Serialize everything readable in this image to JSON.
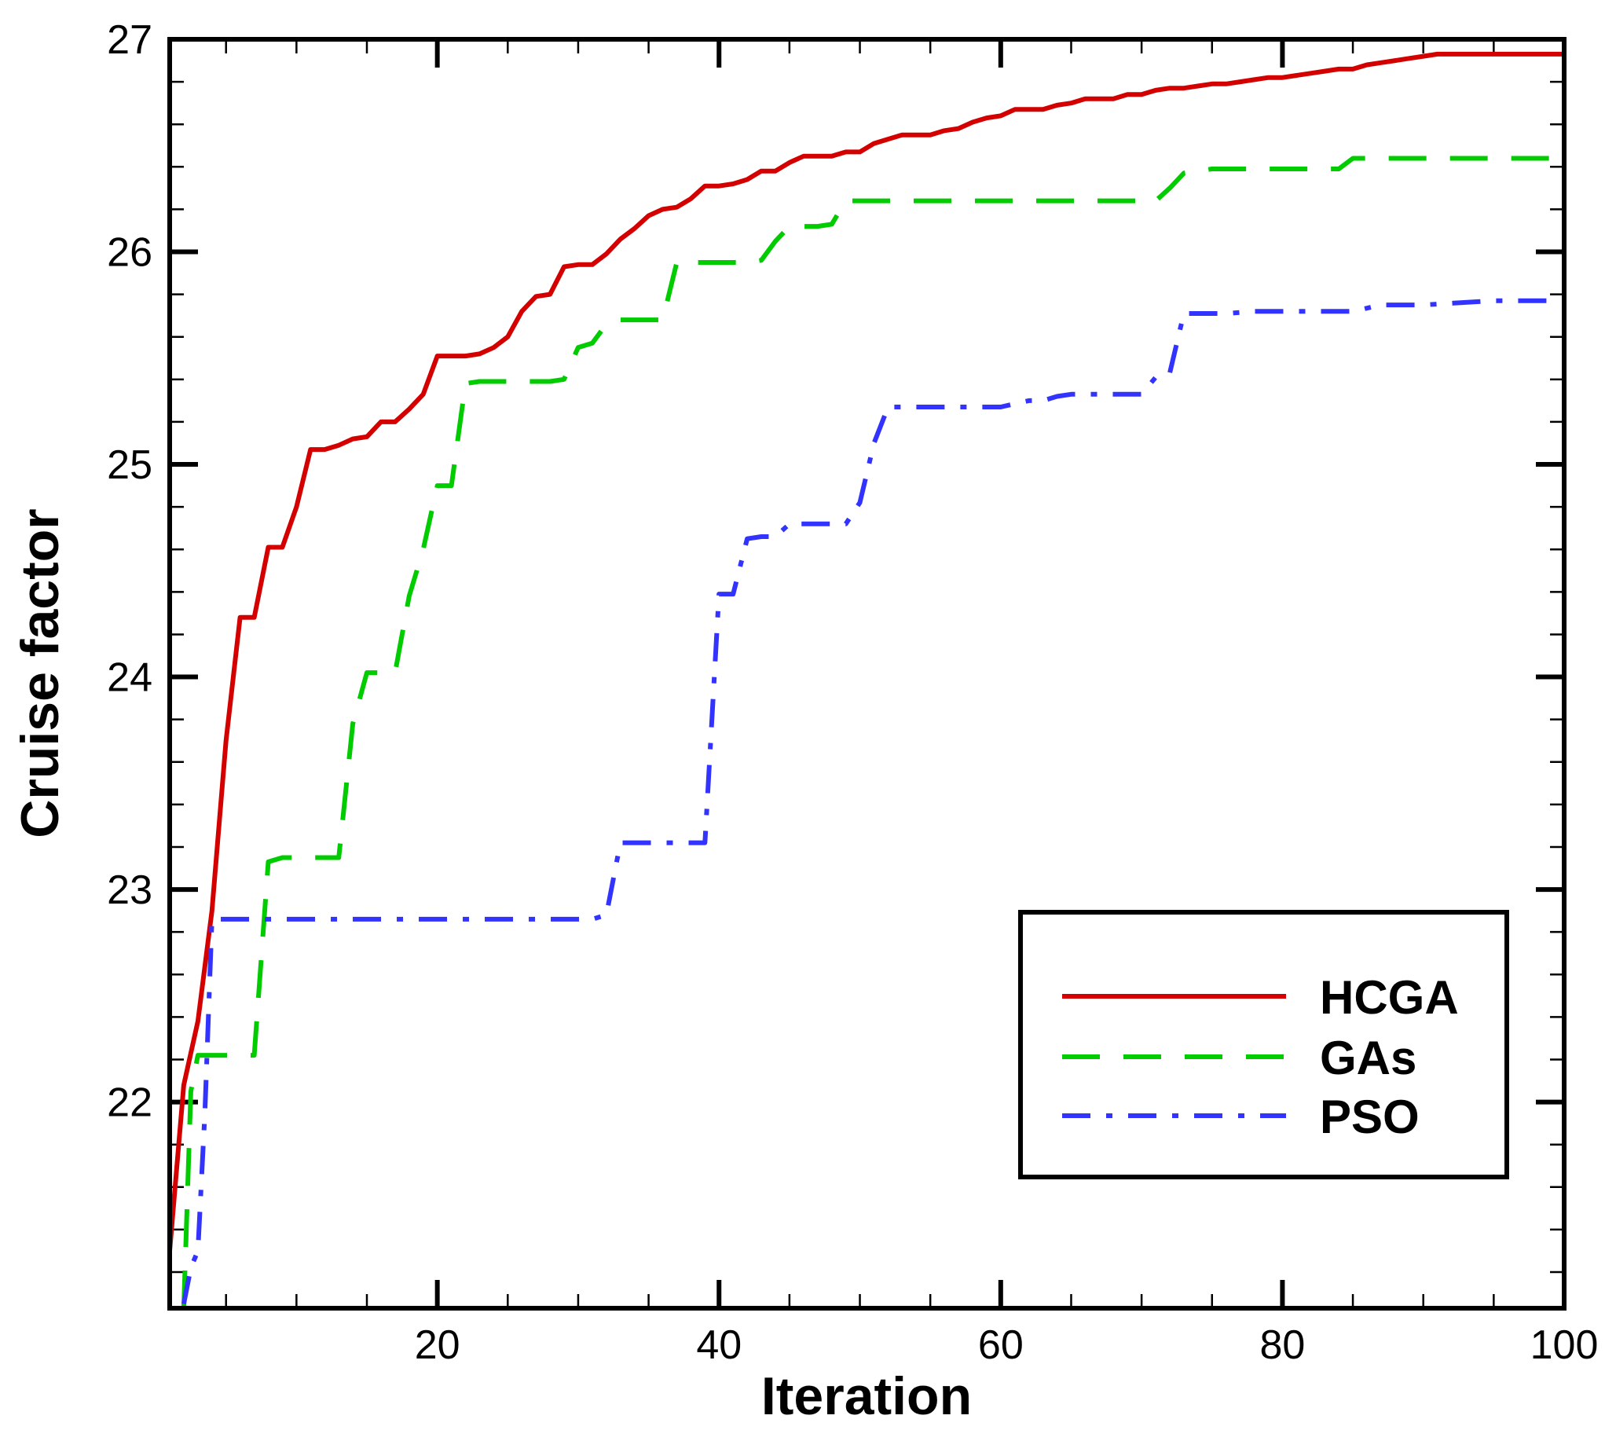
{
  "chart_data": {
    "type": "line",
    "title": "",
    "xlabel": "Iteration",
    "ylabel": "Cruise factor",
    "xlim": [
      1,
      100
    ],
    "ylim": [
      21.03,
      27.0
    ],
    "x_ticks": [
      20,
      40,
      60,
      80,
      100
    ],
    "x_tick_labels": [
      "20",
      "40",
      "60",
      "80",
      "100"
    ],
    "y_ticks": [
      22,
      23,
      24,
      25,
      26,
      27
    ],
    "y_tick_labels": [
      "22",
      "23",
      "24",
      "25",
      "26",
      "27"
    ],
    "x_minor_step": 5,
    "y_minor_step": 0.2,
    "grid": false,
    "legend_position": "lower-right",
    "series": [
      {
        "name": "HCGA",
        "color": "#d40000",
        "style": "solid",
        "x": [
          1,
          2,
          3,
          4,
          5,
          6,
          7,
          8,
          9,
          10,
          11,
          12,
          13,
          14,
          15,
          16,
          17,
          18,
          19,
          20,
          21,
          22,
          23,
          24,
          25,
          26,
          27,
          28,
          29,
          30,
          31,
          32,
          33,
          34,
          35,
          36,
          37,
          38,
          39,
          40,
          41,
          42,
          43,
          44,
          45,
          46,
          47,
          48,
          49,
          50,
          51,
          52,
          53,
          54,
          55,
          56,
          57,
          58,
          59,
          60,
          61,
          62,
          63,
          64,
          65,
          66,
          67,
          68,
          69,
          70,
          71,
          72,
          73,
          74,
          75,
          76,
          77,
          78,
          79,
          80,
          81,
          82,
          83,
          84,
          85,
          86,
          87,
          88,
          89,
          90,
          91,
          92,
          93,
          94,
          95,
          96,
          97,
          98,
          99,
          100
        ],
        "y": [
          21.3,
          22.08,
          22.38,
          22.9,
          23.7,
          24.28,
          24.28,
          24.61,
          24.61,
          24.8,
          25.07,
          25.07,
          25.09,
          25.12,
          25.13,
          25.2,
          25.2,
          25.26,
          25.33,
          25.51,
          25.51,
          25.51,
          25.52,
          25.55,
          25.6,
          25.72,
          25.79,
          25.8,
          25.93,
          25.94,
          25.94,
          25.99,
          26.06,
          26.11,
          26.17,
          26.2,
          26.21,
          26.25,
          26.31,
          26.31,
          26.32,
          26.34,
          26.38,
          26.38,
          26.42,
          26.45,
          26.45,
          26.45,
          26.47,
          26.47,
          26.51,
          26.53,
          26.55,
          26.55,
          26.55,
          26.57,
          26.58,
          26.61,
          26.63,
          26.64,
          26.67,
          26.67,
          26.67,
          26.69,
          26.7,
          26.72,
          26.72,
          26.72,
          26.74,
          26.74,
          26.76,
          26.77,
          26.77,
          26.78,
          26.79,
          26.79,
          26.8,
          26.81,
          26.82,
          26.82,
          26.83,
          26.84,
          26.85,
          26.86,
          26.86,
          26.88,
          26.89,
          26.9,
          26.91,
          26.92,
          26.93,
          26.93,
          26.93,
          26.93,
          26.93,
          26.93,
          26.93,
          26.93,
          26.93,
          26.93
        ]
      },
      {
        "name": "GAs",
        "color": "#00cc00",
        "style": "dashed",
        "x": [
          2,
          2.5,
          3,
          4,
          5,
          6,
          7,
          8,
          9,
          10,
          11,
          12,
          13,
          14,
          15,
          16,
          17,
          18,
          19,
          20,
          21,
          22,
          23,
          24,
          25,
          26,
          27,
          28,
          29,
          30,
          31,
          32,
          33,
          34,
          35,
          36,
          37,
          38,
          39,
          40,
          41,
          42,
          43,
          44,
          45,
          46,
          47,
          48,
          49,
          50,
          55,
          60,
          65,
          70,
          71,
          72,
          73,
          74,
          75,
          80,
          84,
          85,
          86,
          90,
          95,
          100
        ],
        "y": [
          21.03,
          22.05,
          22.22,
          22.22,
          22.22,
          22.22,
          22.22,
          23.13,
          23.15,
          23.15,
          23.15,
          23.15,
          23.15,
          23.78,
          24.02,
          24.02,
          24.02,
          24.38,
          24.6,
          24.9,
          24.9,
          25.38,
          25.39,
          25.39,
          25.39,
          25.39,
          25.39,
          25.39,
          25.4,
          25.55,
          25.57,
          25.66,
          25.68,
          25.68,
          25.68,
          25.68,
          25.95,
          25.95,
          25.95,
          25.95,
          25.95,
          25.95,
          25.96,
          26.05,
          26.12,
          26.12,
          26.12,
          26.13,
          26.24,
          26.24,
          26.24,
          26.24,
          26.24,
          26.24,
          26.24,
          26.3,
          26.37,
          26.38,
          26.39,
          26.39,
          26.39,
          26.44,
          26.44,
          26.44,
          26.44,
          26.44
        ]
      },
      {
        "name": "PSO",
        "color": "#3333ff",
        "style": "dashdot",
        "x": [
          2,
          2.5,
          3,
          3.5,
          4,
          5,
          10,
          20,
          30,
          31,
          32,
          33,
          34,
          35,
          36,
          37,
          38,
          39,
          40,
          41,
          42,
          43,
          44,
          45,
          46,
          47,
          48,
          49,
          50,
          51,
          52,
          53,
          55,
          60,
          62,
          63,
          64,
          65,
          70,
          71,
          72,
          73,
          74,
          75,
          76,
          78,
          80,
          85,
          87,
          90,
          95,
          100
        ],
        "y": [
          21.05,
          21.22,
          21.3,
          21.95,
          22.86,
          22.86,
          22.86,
          22.86,
          22.86,
          22.86,
          22.88,
          23.22,
          23.22,
          23.22,
          23.22,
          23.22,
          23.22,
          23.22,
          24.39,
          24.39,
          24.65,
          24.66,
          24.66,
          24.72,
          24.72,
          24.72,
          24.72,
          24.72,
          24.82,
          25.1,
          25.27,
          25.27,
          25.27,
          25.27,
          25.3,
          25.3,
          25.32,
          25.33,
          25.33,
          25.41,
          25.43,
          25.71,
          25.71,
          25.71,
          25.71,
          25.72,
          25.72,
          25.72,
          25.75,
          25.75,
          25.77,
          25.77
        ]
      }
    ]
  }
}
